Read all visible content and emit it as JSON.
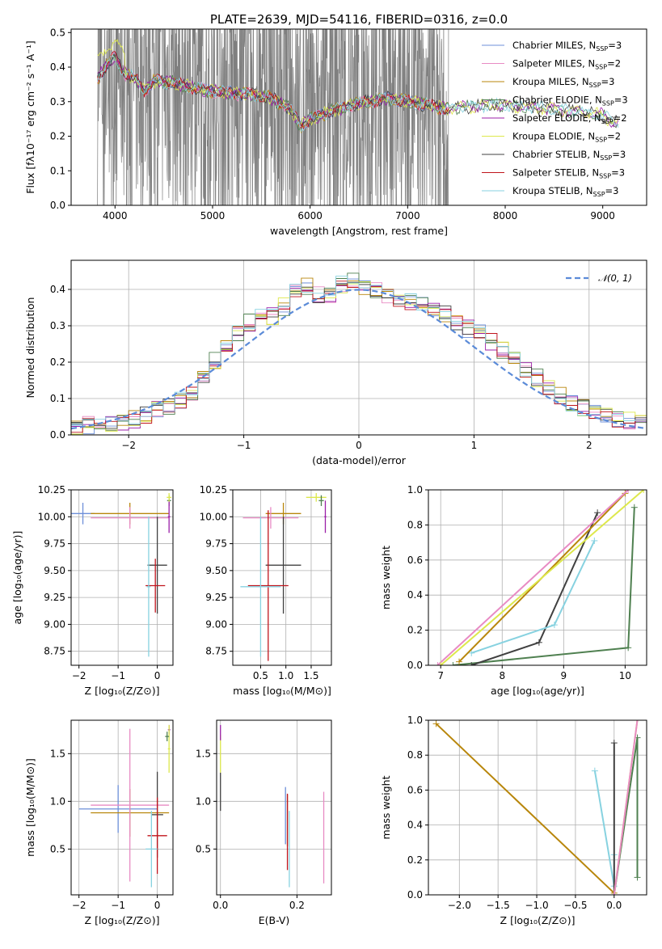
{
  "colors": {
    "Chabrier MILES": "#6d8fd9",
    "Salpeter MILES": "#e88bc4",
    "Kroupa MILES": "#b8860b",
    "Chabrier ELODIE": "#4f8050",
    "Salpeter ELODIE": "#9b1fa8",
    "Kroupa ELODIE": "#dde84c",
    "Chabrier STELIB": "#404040",
    "Salpeter STELIB": "#c0141c",
    "Kroupa STELIB": "#87d2e0",
    "gaussian": "#5b8bd8",
    "data": "#7f7f7f",
    "extra_orange": "#e06d2a"
  },
  "chart_data": [
    {
      "id": "spectrum",
      "type": "line",
      "title": "PLATE=2639, MJD=54116, FIBERID=0316, z=0.0",
      "xlabel": "wavelength [Angstrom, rest frame]",
      "ylabel": "Flux [fλ10⁻¹⁷ erg cm⁻² s⁻¹ A⁻¹]",
      "xlim": [
        3550,
        9450
      ],
      "ylim": [
        0,
        0.51
      ],
      "xticks": [
        4000,
        5000,
        6000,
        7000,
        8000,
        9000
      ],
      "yticks": [
        0.0,
        0.1,
        0.2,
        0.3,
        0.4,
        0.5
      ],
      "legend_position": "upper-right",
      "legend": [
        {
          "base": "Chabrier MILES, N",
          "sub": "SSP",
          "tail": "=3"
        },
        {
          "base": "Salpeter MILES, N",
          "sub": "SSP",
          "tail": "=2"
        },
        {
          "base": "Kroupa MILES, N",
          "sub": "SSP",
          "tail": "=3"
        },
        {
          "base": "Chabrier ELODIE, N",
          "sub": "SSP",
          "tail": "=3"
        },
        {
          "base": "Salpeter ELODIE, N",
          "sub": "SSP",
          "tail": "=2"
        },
        {
          "base": "Kroupa ELODIE, N",
          "sub": "SSP",
          "tail": "=2"
        },
        {
          "base": "Chabrier STELIB, N",
          "sub": "SSP",
          "tail": "=3"
        },
        {
          "base": "Salpeter STELIB, N",
          "sub": "SSP",
          "tail": "=3"
        },
        {
          "base": "Kroupa STELIB, N",
          "sub": "SSP",
          "tail": "=3"
        }
      ],
      "observed_range": [
        3820,
        7420
      ],
      "model_continuum": {
        "x": [
          3800,
          3900,
          4000,
          4100,
          4200,
          4300,
          4400,
          4600,
          4800,
          5000,
          5200,
          5400,
          5600,
          5800,
          5900,
          6000,
          6200,
          6400,
          6600,
          6800,
          7000,
          7200,
          7400,
          7600,
          7800,
          8000,
          8200,
          8400,
          8600,
          8800,
          9000,
          9200
        ],
        "y": [
          0.36,
          0.4,
          0.43,
          0.38,
          0.37,
          0.33,
          0.36,
          0.355,
          0.34,
          0.33,
          0.325,
          0.32,
          0.31,
          0.28,
          0.23,
          0.25,
          0.27,
          0.29,
          0.3,
          0.31,
          0.3,
          0.29,
          0.28,
          0.285,
          0.29,
          0.29,
          0.285,
          0.28,
          0.275,
          0.27,
          0.26,
          0.23
        ]
      }
    },
    {
      "id": "residuals",
      "type": "line",
      "xlabel": "(data-model)/error",
      "ylabel": "Normed distribution",
      "xlim": [
        -2.5,
        2.5
      ],
      "ylim": [
        0,
        0.48
      ],
      "xticks": [
        -2,
        -1,
        0,
        1,
        2
      ],
      "yticks": [
        0.0,
        0.1,
        0.2,
        0.3,
        0.4
      ],
      "legend": "𝒩(0, 1)",
      "legend_position": "upper-right",
      "grid": true,
      "histogram_bins": {
        "x": [
          -2.5,
          -2.3,
          -2.1,
          -1.9,
          -1.7,
          -1.5,
          -1.3,
          -1.1,
          -0.9,
          -0.7,
          -0.5,
          -0.3,
          -0.1,
          0.1,
          0.3,
          0.5,
          0.7,
          0.9,
          1.1,
          1.3,
          1.5,
          1.7,
          1.9,
          2.1,
          2.3
        ],
        "y": [
          0.02,
          0.03,
          0.035,
          0.045,
          0.075,
          0.1,
          0.18,
          0.27,
          0.32,
          0.33,
          0.42,
          0.37,
          0.43,
          0.4,
          0.38,
          0.36,
          0.34,
          0.3,
          0.27,
          0.22,
          0.17,
          0.12,
          0.08,
          0.06,
          0.04
        ]
      }
    },
    {
      "id": "age_vs_Z",
      "type": "scatter",
      "xlabel": "Z [log₁₀(Z/Z⊙)]",
      "ylabel": "age  [log₁₀(age/yr)]",
      "xlim": [
        -2.2,
        0.4
      ],
      "ylim": [
        8.62,
        10.25
      ],
      "xticks": [
        -2,
        -1,
        0
      ],
      "yticks": [
        8.75,
        9.0,
        9.25,
        9.5,
        9.75,
        10.0,
        10.25
      ],
      "grid": true,
      "points": [
        {
          "m": "Chabrier MILES",
          "x": -1.9,
          "y": 10.03,
          "xe": 0.3,
          "ye": 0.1
        },
        {
          "m": "Kroupa MILES",
          "x": -0.7,
          "y": 10.03,
          "xe": 1.0,
          "ye": 0.1
        },
        {
          "m": "Salpeter MILES",
          "x": -0.7,
          "y": 9.99,
          "xe": 1.0,
          "ye": 0.1
        },
        {
          "m": "Chabrier STELIB",
          "x": 0.0,
          "y": 9.55,
          "xe": 0.25,
          "ye": 0.45
        },
        {
          "m": "Salpeter STELIB",
          "x": -0.05,
          "y": 9.36,
          "xe": 0.25,
          "ye": 0.25
        },
        {
          "m": "Kroupa STELIB",
          "x": -0.22,
          "y": 9.35,
          "xe": 0.05,
          "ye": 0.65
        },
        {
          "m": "Chabrier ELODIE",
          "x": 0.3,
          "y": 10.15,
          "xe": 0.05,
          "ye": 0.05
        },
        {
          "m": "Salpeter ELODIE",
          "x": 0.3,
          "y": 10.0,
          "xe": 0.03,
          "ye": 0.15
        },
        {
          "m": "Kroupa ELODIE",
          "x": 0.3,
          "y": 10.18,
          "xe": 0.06,
          "ye": 0.04
        }
      ]
    },
    {
      "id": "age_vs_mass",
      "type": "scatter",
      "xlabel": "mass [log₁₀(M/M⊙)]",
      "ylabel": "",
      "xlim": [
        -0.05,
        1.9
      ],
      "ylim": [
        8.62,
        10.25
      ],
      "xticks": [
        0.5,
        1.0,
        1.5
      ],
      "yticks": [
        8.75,
        9.0,
        9.25,
        9.5,
        9.75,
        10.0,
        10.25
      ],
      "grid": true,
      "points": [
        {
          "m": "Kroupa MILES",
          "x": 0.95,
          "y": 10.03,
          "xe": 0.35,
          "ye": 0.1
        },
        {
          "m": "Salpeter MILES",
          "x": 0.7,
          "y": 9.99,
          "xe": 0.55,
          "ye": 0.1
        },
        {
          "m": "Chabrier STELIB",
          "x": 0.95,
          "y": 9.55,
          "xe": 0.35,
          "ye": 0.45
        },
        {
          "m": "Salpeter STELIB",
          "x": 0.65,
          "y": 9.36,
          "xe": 0.4,
          "ye": 0.7
        },
        {
          "m": "Kroupa STELIB",
          "x": 0.5,
          "y": 9.35,
          "xe": 0.4,
          "ye": 0.65
        },
        {
          "m": "Salpeter ELODIE",
          "x": 1.78,
          "y": 10.0,
          "xe": 0.02,
          "ye": 0.15
        },
        {
          "m": "Kroupa ELODIE",
          "x": 1.6,
          "y": 10.18,
          "xe": 0.2,
          "ye": 0.04
        },
        {
          "m": "Chabrier ELODIE",
          "x": 1.7,
          "y": 10.15,
          "xe": 0.05,
          "ye": 0.05
        }
      ]
    },
    {
      "id": "weight_vs_age",
      "type": "line",
      "xlabel": "age  [log₁₀(age/yr)]",
      "ylabel": "mass weight",
      "xlim": [
        6.8,
        10.35
      ],
      "ylim": [
        0,
        1.0
      ],
      "xticks": [
        7,
        8,
        9,
        10
      ],
      "yticks": [
        0.0,
        0.2,
        0.4,
        0.6,
        0.8,
        1.0
      ],
      "grid": true,
      "series": [
        {
          "m": "Chabrier ELODIE",
          "x": [
            7.2,
            10.05,
            10.15
          ],
          "y": [
            0.0,
            0.1,
            0.9
          ]
        },
        {
          "m": "Chabrier STELIB",
          "x": [
            7.5,
            8.6,
            9.55
          ],
          "y": [
            0.0,
            0.13,
            0.87
          ]
        },
        {
          "m": "Kroupa STELIB",
          "x": [
            7.5,
            8.85,
            9.5
          ],
          "y": [
            0.07,
            0.23,
            0.71
          ]
        },
        {
          "m": "Kroupa MILES",
          "x": [
            7.3,
            10.0
          ],
          "y": [
            0.02,
            0.98
          ]
        },
        {
          "m": "Salpeter MILES",
          "x": [
            6.95,
            10.05
          ],
          "y": [
            0.0,
            1.0
          ]
        },
        {
          "m": "Kroupa ELODIE",
          "x": [
            7.0,
            10.3
          ],
          "y": [
            0.0,
            1.0
          ]
        }
      ]
    },
    {
      "id": "mass_vs_Z",
      "type": "scatter",
      "xlabel": "Z [log₁₀(Z/Z⊙)]",
      "ylabel": "mass [log₁₀(M/M⊙)]",
      "xlim": [
        -2.2,
        0.4
      ],
      "ylim": [
        0.02,
        1.85
      ],
      "xticks": [
        -2,
        -1,
        0
      ],
      "yticks": [
        0.5,
        1.0,
        1.5
      ],
      "grid": true,
      "points": [
        {
          "m": "Chabrier MILES",
          "x": -1.0,
          "y": 0.92,
          "xe": 1.0,
          "ye": 0.25
        },
        {
          "m": "Kroupa MILES",
          "x": -0.7,
          "y": 0.88,
          "xe": 1.0,
          "ye": 0.25
        },
        {
          "m": "Salpeter MILES",
          "x": -0.7,
          "y": 0.96,
          "xe": 1.0,
          "ye": 0.8
        },
        {
          "m": "Chabrier STELIB",
          "x": 0.0,
          "y": 0.86,
          "xe": 0.15,
          "ye": 0.45
        },
        {
          "m": "Salpeter STELIB",
          "x": 0.0,
          "y": 0.64,
          "xe": 0.25,
          "ye": 0.4
        },
        {
          "m": "Kroupa STELIB",
          "x": -0.15,
          "y": 0.5,
          "xe": 0.15,
          "ye": 0.4
        },
        {
          "m": "Salpeter ELODIE",
          "x": 0.3,
          "y": 1.75,
          "xe": 0.03,
          "ye": 0.05
        },
        {
          "m": "Kroupa ELODIE",
          "x": 0.3,
          "y": 1.55,
          "xe": 0.03,
          "ye": 0.25
        },
        {
          "m": "Chabrier ELODIE",
          "x": 0.25,
          "y": 1.68,
          "xe": 0.05,
          "ye": 0.05
        }
      ]
    },
    {
      "id": "mass_vs_EBV",
      "type": "scatter",
      "xlabel": "E(B-V)",
      "ylabel": "",
      "xlim": [
        -0.01,
        0.29
      ],
      "ylim": [
        0.02,
        1.85
      ],
      "xticks": [
        0.0,
        0.2
      ],
      "yticks": [
        0.5,
        1.0,
        1.5
      ],
      "grid": true,
      "points": [
        {
          "m": "Kroupa ELODIE",
          "x": 0.0,
          "y": 1.5,
          "xe": 0.0,
          "ye": 0.2
        },
        {
          "m": "Salpeter ELODIE",
          "x": 0.0,
          "y": 1.72,
          "xe": 0.0,
          "ye": 0.08
        },
        {
          "m": "Chabrier STELIB",
          "x": 0.0,
          "y": 1.1,
          "xe": 0.0,
          "ye": 0.2
        },
        {
          "m": "Chabrier MILES",
          "x": 0.17,
          "y": 0.85,
          "xe": 0.0,
          "ye": 0.3
        },
        {
          "m": "Kroupa MILES",
          "x": 0.175,
          "y": 0.8,
          "xe": 0.0,
          "ye": 0.27
        },
        {
          "m": "Salpeter STELIB",
          "x": 0.175,
          "y": 0.68,
          "xe": 0.0,
          "ye": 0.4
        },
        {
          "m": "Kroupa STELIB",
          "x": 0.18,
          "y": 0.5,
          "xe": 0.0,
          "ye": 0.4
        },
        {
          "m": "Salpeter MILES",
          "x": 0.27,
          "y": 0.62,
          "xe": 0.0,
          "ye": 0.48
        }
      ]
    },
    {
      "id": "weight_vs_Z",
      "type": "line",
      "xlabel": "Z [log₁₀(Z/Z⊙)]",
      "ylabel": "mass weight",
      "xlim": [
        -2.4,
        0.42
      ],
      "ylim": [
        0,
        1.0
      ],
      "xticks": [
        -2.0,
        -1.5,
        -1.0,
        -0.5,
        0.0
      ],
      "yticks": [
        0.0,
        0.2,
        0.4,
        0.6,
        0.8,
        1.0
      ],
      "grid": true,
      "series": [
        {
          "m": "Kroupa MILES",
          "x": [
            -2.3,
            0.0
          ],
          "y": [
            0.98,
            0.01
          ]
        },
        {
          "m": "Kroupa STELIB",
          "x": [
            -0.25,
            0.0,
            0.0
          ],
          "y": [
            0.71,
            0.05,
            0.23
          ]
        },
        {
          "m": "Chabrier STELIB",
          "x": [
            0.0,
            0.0
          ],
          "y": [
            0.0,
            0.87
          ]
        },
        {
          "m": "Chabrier ELODIE",
          "x": [
            0.0,
            0.3,
            0.3
          ],
          "y": [
            0.0,
            0.9,
            0.1
          ]
        },
        {
          "m": "Kroupa ELODIE",
          "x": [
            0.0,
            0.3
          ],
          "y": [
            0.0,
            1.0
          ]
        },
        {
          "m": "Salpeter MILES",
          "x": [
            0.0,
            0.3
          ],
          "y": [
            0.0,
            1.0
          ]
        }
      ]
    }
  ]
}
